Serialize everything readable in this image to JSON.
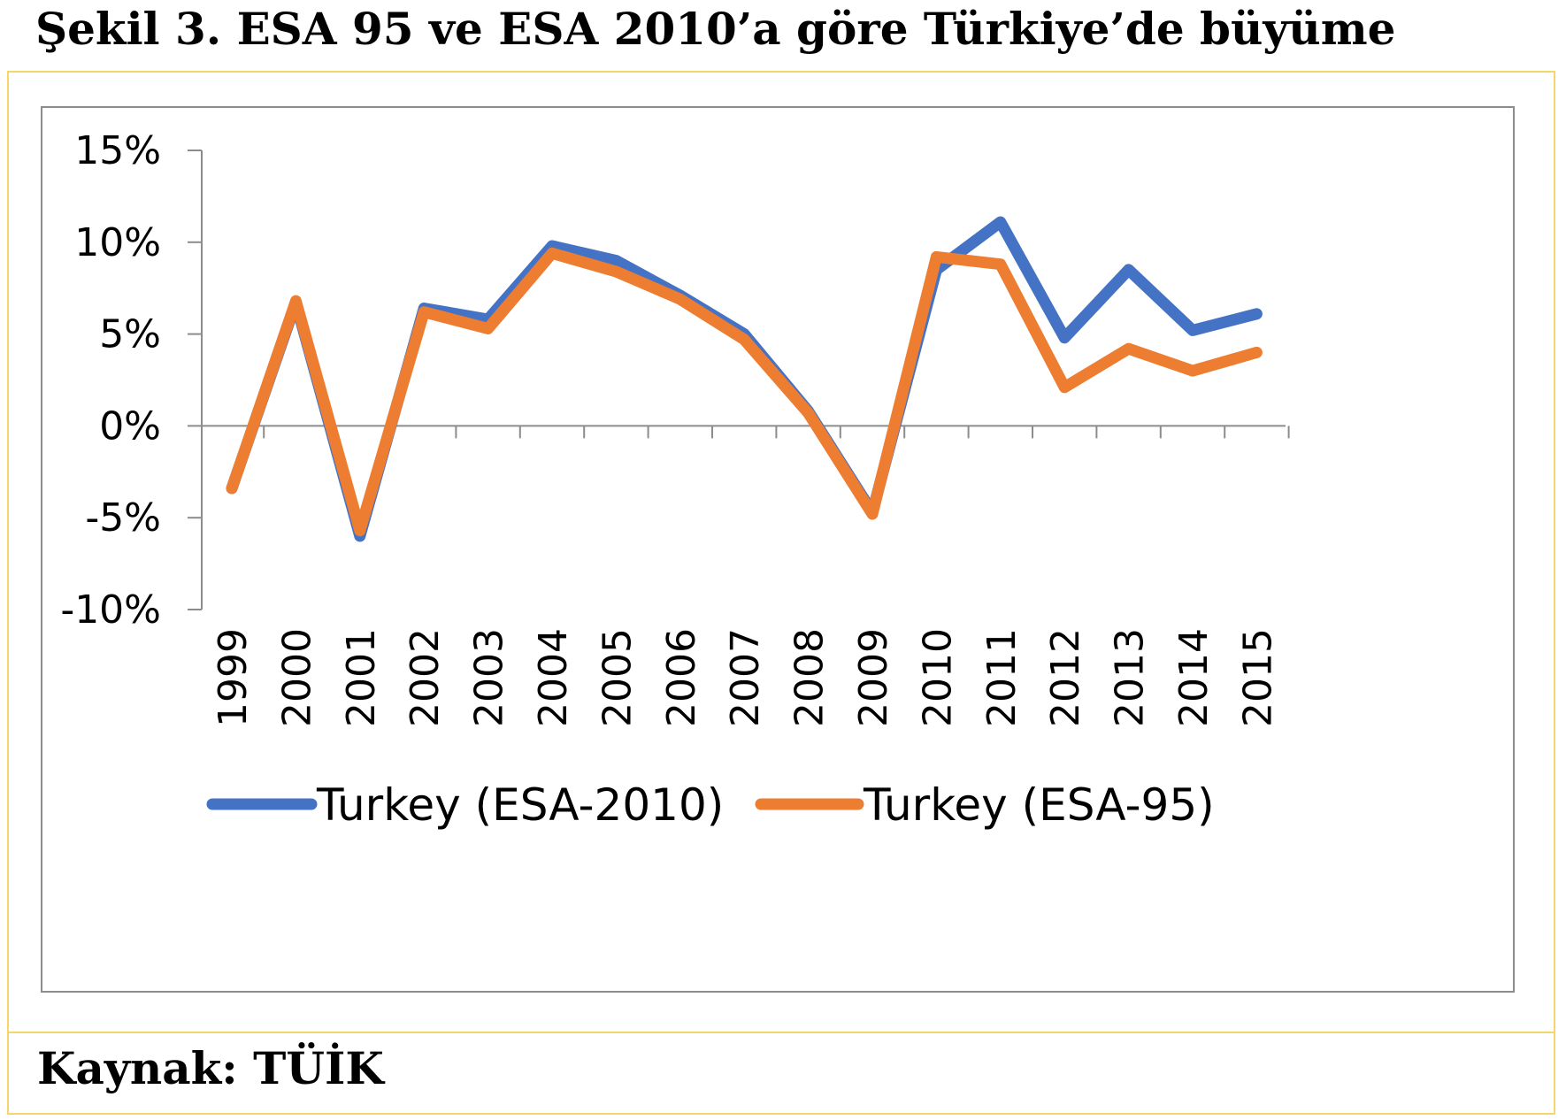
{
  "figure_title": "Şekil 3. ESA 95 ve ESA 2010’a göre Türkiye’de büyüme",
  "source": "Kaynak: TÜİK",
  "colors": {
    "frame": "#f5d66a",
    "chart_border": "#8c8c8c",
    "axis": "#8c8c8c",
    "series_esa2010": "#4472c4",
    "series_esa95": "#ed7d31"
  },
  "chart_data": {
    "type": "line",
    "title": "",
    "xlabel": "",
    "ylabel": "",
    "x": [
      "1999",
      "2000",
      "2001",
      "2002",
      "2003",
      "2004",
      "2005",
      "2006",
      "2007",
      "2008",
      "2009",
      "2010",
      "2011",
      "2012",
      "2013",
      "2014",
      "2015"
    ],
    "y_ticks": [
      15,
      10,
      5,
      0,
      -5,
      -10
    ],
    "y_tick_labels": [
      "15%",
      "10%",
      "5%",
      "0%",
      "-5%",
      "-10%"
    ],
    "ylim": [
      -10,
      15
    ],
    "y_unit": "%",
    "grid": false,
    "legend_position": "bottom",
    "series": [
      {
        "name": "Turkey (ESA-2010)",
        "color": "#4472c4",
        "values": [
          -3.4,
          6.7,
          -6.0,
          6.4,
          5.8,
          9.8,
          9.0,
          7.1,
          5.0,
          0.8,
          -4.7,
          8.5,
          11.1,
          4.8,
          8.5,
          5.2,
          6.1
        ]
      },
      {
        "name": "Turkey (ESA-95)",
        "color": "#ed7d31",
        "values": [
          -3.4,
          6.8,
          -5.7,
          6.2,
          5.3,
          9.4,
          8.4,
          6.9,
          4.7,
          0.7,
          -4.8,
          9.2,
          8.8,
          2.1,
          4.2,
          3.0,
          4.0
        ]
      }
    ]
  }
}
